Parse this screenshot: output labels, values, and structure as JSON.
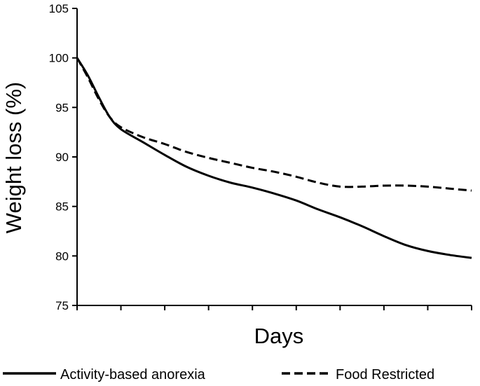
{
  "chart_data": {
    "type": "line",
    "xlabel": "Days",
    "ylabel": "Weight loss (%)",
    "ylim": [
      75,
      105
    ],
    "yticks": [
      75,
      80,
      85,
      90,
      95,
      100,
      105
    ],
    "xlim": [
      0,
      9
    ],
    "x_tick_count": 10,
    "x_tick_labels_shown": false,
    "grid": false,
    "legend_position": "bottom",
    "x": [
      0,
      0.25,
      0.5,
      0.75,
      1,
      1.5,
      2,
      2.5,
      3,
      3.5,
      4,
      4.5,
      5,
      5.5,
      6,
      6.5,
      7,
      7.5,
      8,
      8.5,
      9
    ],
    "series": [
      {
        "name": "Activity-based anorexia",
        "style": "solid",
        "color": "#000000",
        "values": [
          100,
          98.2,
          96.0,
          94.0,
          92.8,
          91.5,
          90.2,
          89.0,
          88.1,
          87.4,
          86.9,
          86.3,
          85.6,
          84.7,
          83.9,
          83.0,
          82.0,
          81.1,
          80.5,
          80.1,
          79.8
        ]
      },
      {
        "name": "Food Restricted",
        "style": "dashed",
        "color": "#000000",
        "values": [
          100,
          98.0,
          95.8,
          94.0,
          93.0,
          92.0,
          91.3,
          90.5,
          89.9,
          89.4,
          88.9,
          88.5,
          88.0,
          87.4,
          87.0,
          87.0,
          87.1,
          87.1,
          87.0,
          86.8,
          86.6
        ]
      }
    ]
  }
}
